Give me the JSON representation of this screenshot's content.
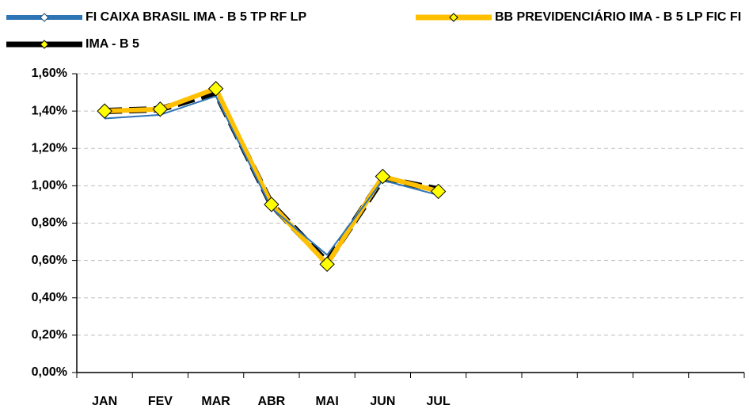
{
  "chart_data": {
    "type": "line",
    "categories": [
      "JAN",
      "FEV",
      "MAR",
      "ABR",
      "MAI",
      "JUN",
      "JUL",
      null,
      null,
      null,
      null,
      null
    ],
    "series": [
      {
        "name": "FI CAIXA BRASIL IMA - B 5 TP RF LP",
        "color": "#2e75b6",
        "values": [
          1.36,
          1.38,
          1.48,
          0.88,
          0.63,
          1.03,
          0.95,
          null,
          null,
          null,
          null,
          null
        ]
      },
      {
        "name": "BB PREVIDENCIÁRIO IMA - B 5 LP FIC FI",
        "color": "#ffc000",
        "values": [
          1.4,
          1.41,
          1.52,
          0.9,
          0.58,
          1.05,
          0.97,
          null,
          null,
          null,
          null,
          null
        ]
      },
      {
        "name": "IMA - B 5",
        "color": "#000000",
        "values": [
          1.4,
          1.41,
          1.5,
          0.9,
          0.59,
          1.04,
          0.98,
          null,
          null,
          null,
          null,
          null
        ]
      }
    ],
    "ylim": [
      0,
      1.6
    ],
    "yticks": [
      {
        "value": 0,
        "label": "0,00%"
      },
      {
        "value": 0.2,
        "label": "0,20%"
      },
      {
        "value": 0.4,
        "label": "0,40%"
      },
      {
        "value": 0.6,
        "label": "0,60%"
      },
      {
        "value": 0.8,
        "label": "0,80%"
      },
      {
        "value": 1.0,
        "label": "1,00%"
      },
      {
        "value": 1.2,
        "label": "1,20%"
      },
      {
        "value": 1.4,
        "label": "1,40%"
      },
      {
        "value": 1.6,
        "label": "1,60%"
      }
    ],
    "grid": true
  }
}
